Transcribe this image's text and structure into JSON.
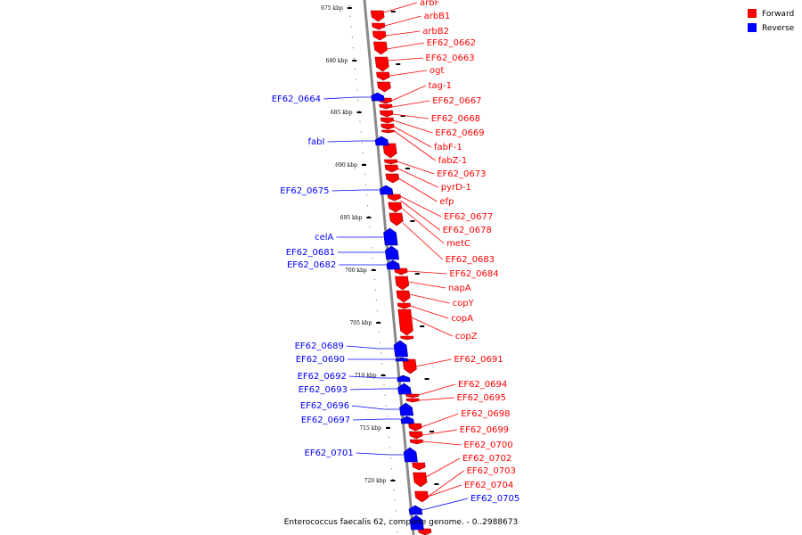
{
  "caption": "Enterococcus faecalis 62, complete genome. - 0..2988673",
  "legend": [
    {
      "label": "Forward",
      "color": "#ff0000"
    },
    {
      "label": "Reverse",
      "color": "#0000ff"
    }
  ],
  "colors": {
    "forward": "#ff0000",
    "reverse": "#0000ff",
    "backbone": "#888888"
  },
  "scale_unit": "kbp",
  "ticks": [
    675,
    680,
    685,
    690,
    695,
    700,
    705,
    710,
    715,
    720
  ],
  "forward_genes": [
    "arbF",
    "arbB1",
    "arbB2",
    "EF62_0662",
    "EF62_0663",
    "ogt",
    "tag-1",
    "EF62_0667",
    "EF62_0668",
    "EF62_0669",
    "fabF-1",
    "fabZ-1",
    "EF62_0673",
    "pyrD-1",
    "efp",
    "EF62_0677",
    "EF62_0678",
    "metC",
    "EF62_0683",
    "EF62_0684",
    "napA",
    "copY",
    "copA",
    "copZ",
    "EF62_0691",
    "EF62_0694",
    "EF62_0695",
    "EF62_0698",
    "EF62_0699",
    "EF62_0700",
    "EF62_0702",
    "EF62_0703",
    "EF62_0704"
  ],
  "reverse_genes": [
    "EF62_0664",
    "fabI",
    "EF62_0675",
    "celA",
    "EF62_0681",
    "EF62_0682",
    "EF62_0689",
    "EF62_0690",
    "EF62_0692",
    "EF62_0693",
    "EF62_0696",
    "EF62_0697",
    "EF62_0701",
    "EF62_0705"
  ]
}
